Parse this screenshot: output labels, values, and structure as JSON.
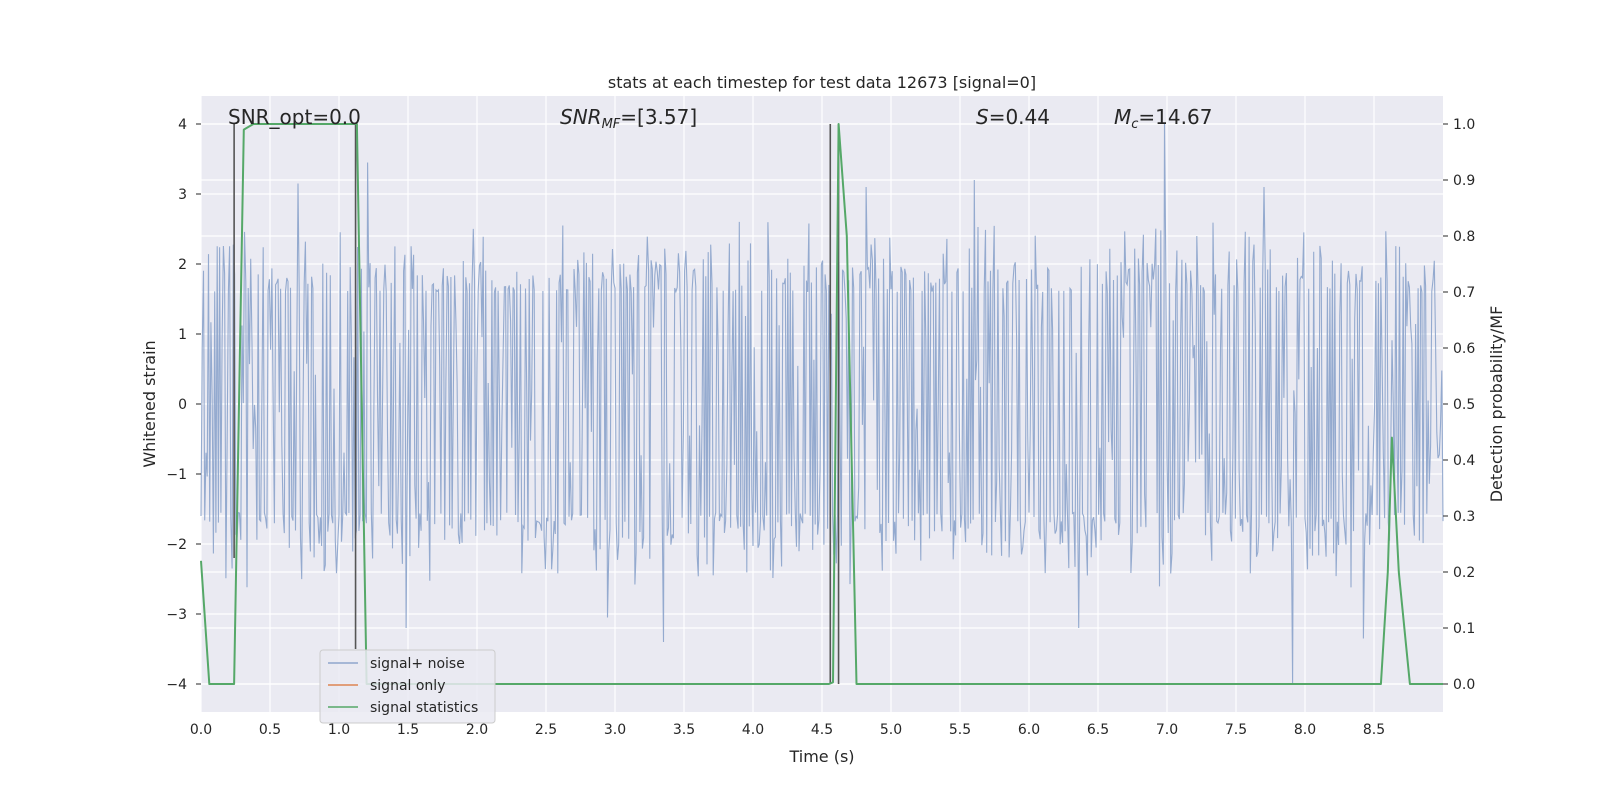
{
  "chart_data": {
    "type": "line",
    "title": "stats at each timestep for test data 12673 [signal=0]",
    "xlabel": "Time (s)",
    "ylabel": "Whitened strain",
    "y2label": "Detection probability/MF",
    "xlim": [
      0.0,
      9.0
    ],
    "ylim": [
      -4.4,
      4.4
    ],
    "y2lim": [
      -0.05,
      1.05
    ],
    "xticks": [
      0.0,
      0.5,
      1.0,
      1.5,
      2.0,
      2.5,
      3.0,
      3.5,
      4.0,
      4.5,
      5.0,
      5.5,
      6.0,
      6.5,
      7.0,
      7.5,
      8.0,
      8.5
    ],
    "xtick_labels": [
      "0.0",
      "0.5",
      "1.0",
      "1.5",
      "2.0",
      "2.5",
      "3.0",
      "3.5",
      "4.0",
      "4.5",
      "5.0",
      "5.5",
      "6.0",
      "6.5",
      "7.0",
      "7.5",
      "8.0",
      "8.5"
    ],
    "yticks": [
      -4,
      -3,
      -2,
      -1,
      0,
      1,
      2,
      3,
      4
    ],
    "ytick_labels": [
      "−4",
      "−3",
      "−2",
      "−1",
      "0",
      "1",
      "2",
      "3",
      "4"
    ],
    "y2ticks": [
      0.0,
      0.1,
      0.2,
      0.3,
      0.4,
      0.5,
      0.6,
      0.7,
      0.8,
      0.9,
      1.0
    ],
    "y2tick_labels": [
      "0.0",
      "0.1",
      "0.2",
      "0.3",
      "0.4",
      "0.5",
      "0.6",
      "0.7",
      "0.8",
      "0.9",
      "1.0"
    ],
    "grid": true,
    "annotations": {
      "snr_opt": "SNR_opt=0.0",
      "snr_mf_main": "SNR",
      "snr_mf_sub": "MF",
      "snr_mf_value": "=[3.57]",
      "s_main": "S",
      "s_value": "=0.44",
      "mc_main": "M",
      "mc_sub": "c",
      "mc_value": "=14.67"
    },
    "vertical_markers": [
      {
        "x": 0.24,
        "y_from": -2.2,
        "y_to": 4.0
      },
      {
        "x": 1.12,
        "y_from": -3.5,
        "y_to": 4.0
      },
      {
        "x": 4.56,
        "y_from": -4.0,
        "y_to": 4.0
      },
      {
        "x": 4.62,
        "y_from": -4.0,
        "y_to": 4.0
      }
    ],
    "series": [
      {
        "name": "signal+ noise",
        "color": "#8fa6cc",
        "kind": "noise",
        "x_start": 0.0,
        "x_end": 9.0,
        "samples": 1000,
        "band_low": -1.55,
        "band_high": 1.6,
        "spikes": [
          {
            "x": 0.7,
            "y": 3.15
          },
          {
            "x": 1.21,
            "y": 3.45
          },
          {
            "x": 5.6,
            "y": 3.2
          },
          {
            "x": 6.98,
            "y": 4.0
          },
          {
            "x": 3.35,
            "y": -3.4
          },
          {
            "x": 1.49,
            "y": -3.2
          },
          {
            "x": 6.36,
            "y": -3.2
          },
          {
            "x": 7.91,
            "y": -4.0
          },
          {
            "x": 8.42,
            "y": -3.35
          },
          {
            "x": 4.82,
            "y": 3.1
          },
          {
            "x": 7.7,
            "y": 3.1
          },
          {
            "x": 2.95,
            "y": -3.05
          }
        ]
      },
      {
        "name": "signal only",
        "color": "#dd8452",
        "kind": "line",
        "x": [
          0.0,
          9.0
        ],
        "y": [
          0.0,
          0.0
        ],
        "axis": "left",
        "visible_trace": false
      },
      {
        "name": "signal statistics",
        "color": "#55a868",
        "kind": "line",
        "axis": "right",
        "x": [
          0.0,
          0.06,
          0.24,
          0.31,
          0.38,
          1.1,
          1.13,
          1.2,
          4.55,
          4.58,
          4.62,
          4.68,
          4.75,
          8.55,
          8.6,
          8.63,
          8.68,
          8.76,
          9.0
        ],
        "y": [
          0.22,
          0.0,
          0.0,
          0.99,
          1.0,
          1.0,
          1.0,
          0.0,
          0.0,
          0.003,
          1.0,
          0.8,
          0.0,
          0.0,
          0.2,
          0.44,
          0.2,
          0.0,
          0.0
        ]
      }
    ]
  }
}
